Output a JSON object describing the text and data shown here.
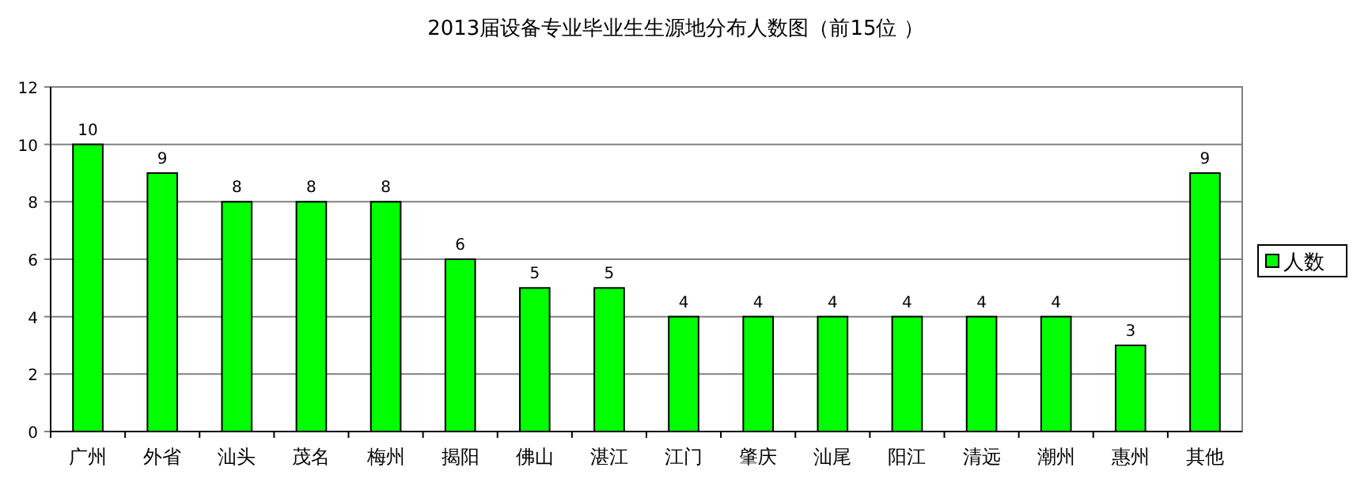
{
  "chart_data": {
    "type": "bar",
    "title": "2013届设备专业毕业生生源地分布人数图（前15位 ）",
    "categories": [
      "广州",
      "外省",
      "汕头",
      "茂名",
      "梅州",
      "揭阳",
      "佛山",
      "湛江",
      "江门",
      "肇庆",
      "汕尾",
      "阳江",
      "清远",
      "潮州",
      "惠州",
      "其他"
    ],
    "series": [
      {
        "name": "人数",
        "color": "#00ff00",
        "values": [
          10,
          9,
          8,
          8,
          8,
          6,
          5,
          5,
          4,
          4,
          4,
          4,
          4,
          4,
          3,
          9
        ]
      }
    ],
    "ylim": [
      0,
      12
    ],
    "yticks": [
      0,
      2,
      4,
      6,
      8,
      10,
      12
    ],
    "grid": "y",
    "legend": "right",
    "data_labels": true
  }
}
